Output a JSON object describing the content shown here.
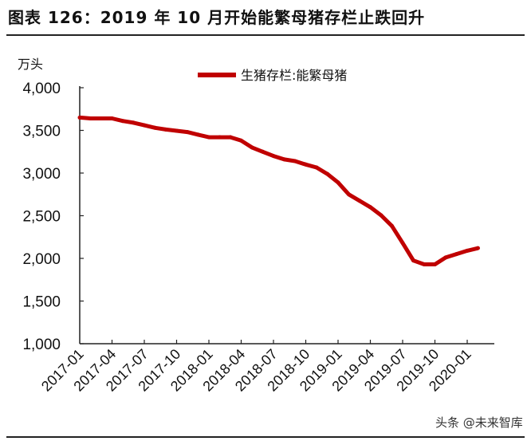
{
  "title": "图表 126：2019 年 10 月开始能繁母猪存栏止跌回升",
  "watermark": "头条 @未来智库",
  "chart_data": {
    "type": "line",
    "title": "",
    "ylabel": "万头",
    "xlabel": "",
    "ylim": [
      1000,
      4000
    ],
    "yticks": [
      "1,000",
      "1,500",
      "2,000",
      "2,500",
      "3,000",
      "3,500",
      "4,000"
    ],
    "ytick_values": [
      1000,
      1500,
      2000,
      2500,
      3000,
      3500,
      4000
    ],
    "xtick_labels": [
      "2017-01",
      "2017-04",
      "2017-07",
      "2017-10",
      "2018-01",
      "2018-04",
      "2018-07",
      "2018-10",
      "2019-01",
      "2019-04",
      "2019-07",
      "2019-10",
      "2020-01"
    ],
    "x": [
      "2017-01",
      "2017-02",
      "2017-03",
      "2017-04",
      "2017-05",
      "2017-06",
      "2017-07",
      "2017-08",
      "2017-09",
      "2017-10",
      "2017-11",
      "2017-12",
      "2018-01",
      "2018-02",
      "2018-03",
      "2018-04",
      "2018-05",
      "2018-06",
      "2018-07",
      "2018-08",
      "2018-09",
      "2018-10",
      "2018-11",
      "2018-12",
      "2019-01",
      "2019-02",
      "2019-03",
      "2019-04",
      "2019-05",
      "2019-06",
      "2019-07",
      "2019-08",
      "2019-09",
      "2019-10",
      "2019-11",
      "2019-12",
      "2020-01",
      "2020-02"
    ],
    "series": [
      {
        "name": "生猪存栏:能繁母猪",
        "color": "#c00000",
        "values": [
          3650,
          3640,
          3640,
          3640,
          3610,
          3590,
          3560,
          3530,
          3510,
          3495,
          3480,
          3450,
          3420,
          3420,
          3420,
          3380,
          3300,
          3250,
          3200,
          3160,
          3140,
          3100,
          3065,
          2990,
          2890,
          2750,
          2675,
          2600,
          2505,
          2380,
          2180,
          1975,
          1930,
          1930,
          2010,
          2050,
          2090,
          2120
        ]
      }
    ],
    "legend": "top-center",
    "grid": false
  }
}
